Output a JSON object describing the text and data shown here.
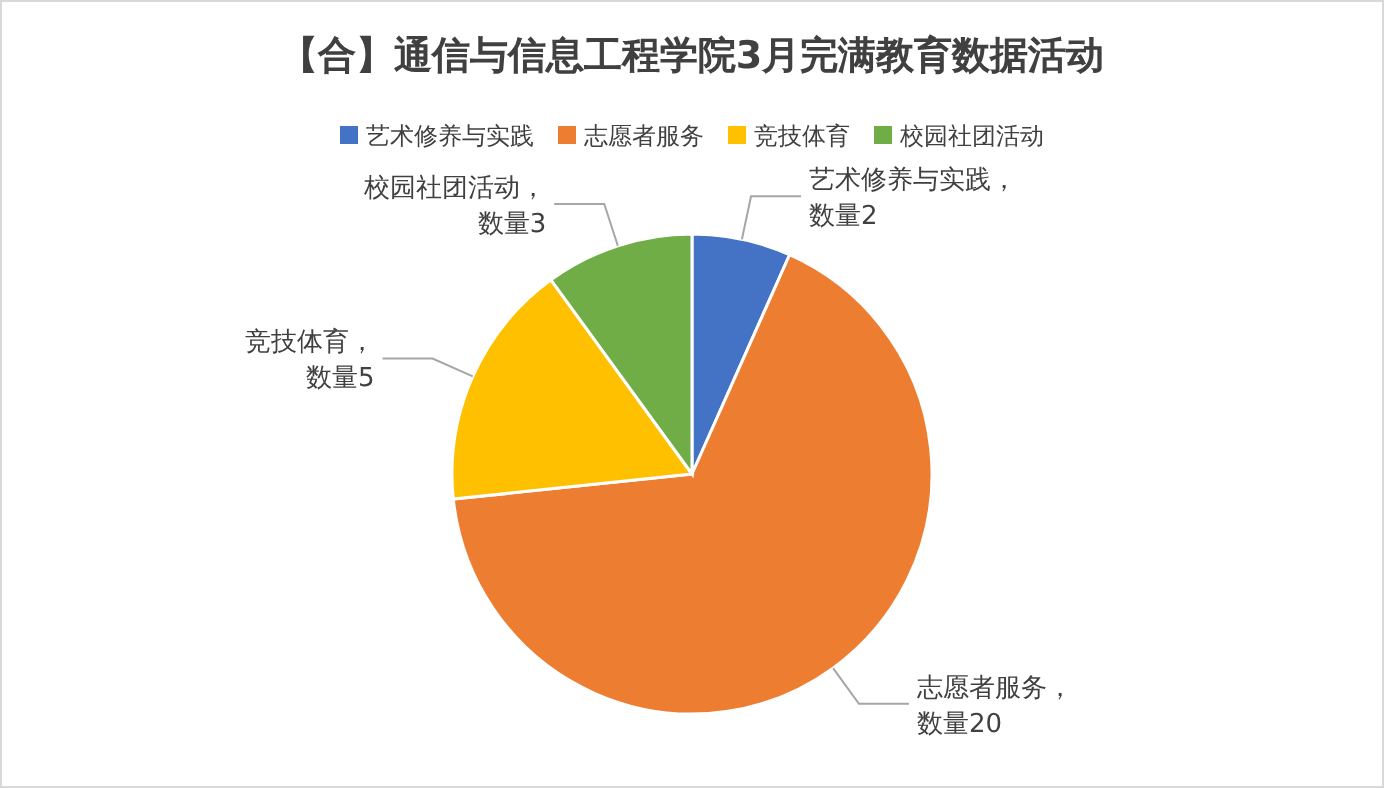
{
  "chart_data": {
    "type": "pie",
    "title": "【合】通信与信息工程学院3月完满教育数据活动",
    "categories": [
      "艺术修养与实践",
      "志愿者服务",
      "竞技体育",
      "校园社团活动"
    ],
    "values": [
      2,
      20,
      5,
      3
    ],
    "colors": [
      "#4472c4",
      "#ed7d31",
      "#ffc000",
      "#70ad47"
    ],
    "value_labels": [
      "艺术修养与实践，数量2",
      "志愿者服务，数量20",
      "竞技体育，数量5",
      "校园社团活动，数量3"
    ],
    "legend": "top"
  }
}
